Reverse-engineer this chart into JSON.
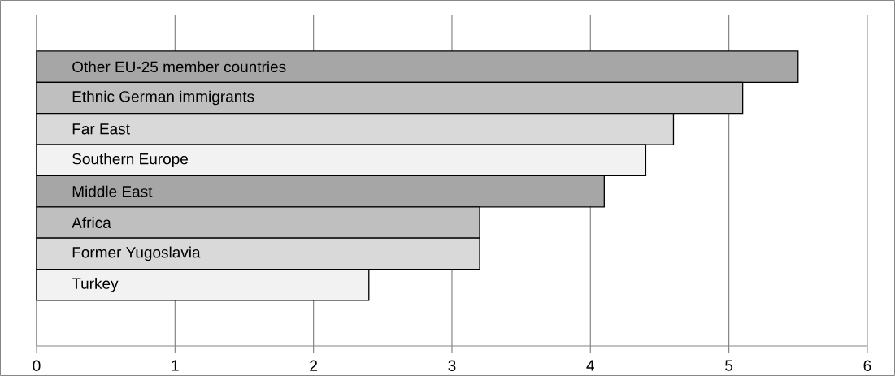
{
  "chart_data": {
    "type": "bar",
    "orientation": "horizontal",
    "categories": [
      "Other EU-25 member countries",
      "Ethnic German immigrants",
      "Far East",
      "Southern Europe",
      "Middle East",
      "Africa",
      "Former Yugoslavia",
      "Turkey"
    ],
    "values": [
      5.5,
      5.1,
      4.6,
      4.4,
      4.1,
      3.2,
      3.2,
      2.4
    ],
    "colors": [
      "#a6a6a6",
      "#bfbfbf",
      "#d9d9d9",
      "#f2f2f2",
      "#a6a6a6",
      "#bfbfbf",
      "#d9d9d9",
      "#f2f2f2"
    ],
    "xlim": [
      0,
      6
    ],
    "xticks": [
      0,
      1,
      2,
      3,
      4,
      5,
      6
    ],
    "grid": "x"
  }
}
